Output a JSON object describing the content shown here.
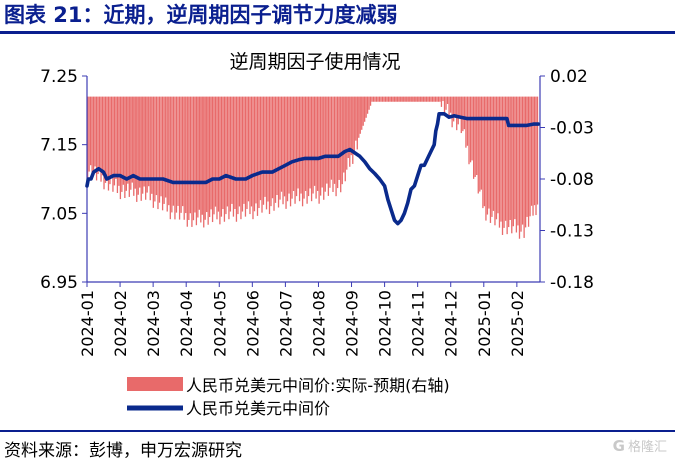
{
  "figure": {
    "title": "图表 21：近期，逆周期因子调节力度减弱",
    "source": "资料来源：彭博，申万宏源研究",
    "watermark": "格隆汇"
  },
  "chart_data": {
    "type": "bar+line",
    "title": "逆周期因子使用情况",
    "x_tick_labels": [
      "2024-01",
      "2024-02",
      "2024-03",
      "2024-04",
      "2024-05",
      "2024-06",
      "2024-07",
      "2024-08",
      "2024-09",
      "2024-10",
      "2024-11",
      "2024-12",
      "2025-01",
      "2025-02"
    ],
    "left_axis": {
      "ylim": [
        6.95,
        7.25
      ],
      "ticks": [
        "6.95",
        "7.05",
        "7.15",
        "7.25"
      ]
    },
    "right_axis": {
      "ylim": [
        -0.18,
        0.02
      ],
      "ticks": [
        "-0.18",
        "-0.13",
        "-0.08",
        "-0.03",
        "0.02"
      ]
    },
    "legend": [
      "人民币兑美元中间价:实际-预期(右轴)",
      "人民币兑美元中间价"
    ],
    "colors": {
      "bar": "#e86a6a",
      "line": "#0a2a8c",
      "axis": "#3c3cb4",
      "title": "#0a1f8f"
    },
    "series": [
      {
        "name": "人民币兑美元中间价",
        "axis": "left",
        "type": "line",
        "points": [
          [
            0,
            7.09
          ],
          [
            0.04,
            7.1
          ],
          [
            0.12,
            7.1
          ],
          [
            0.2,
            7.11
          ],
          [
            0.35,
            7.115
          ],
          [
            0.5,
            7.11
          ],
          [
            0.6,
            7.1
          ],
          [
            0.8,
            7.105
          ],
          [
            1.0,
            7.105
          ],
          [
            1.2,
            7.1
          ],
          [
            1.4,
            7.105
          ],
          [
            1.6,
            7.1
          ],
          [
            1.8,
            7.1
          ],
          [
            2.0,
            7.1
          ],
          [
            2.3,
            7.1
          ],
          [
            2.6,
            7.095
          ],
          [
            3.0,
            7.095
          ],
          [
            3.3,
            7.095
          ],
          [
            3.6,
            7.095
          ],
          [
            3.8,
            7.1
          ],
          [
            4.0,
            7.1
          ],
          [
            4.2,
            7.105
          ],
          [
            4.5,
            7.1
          ],
          [
            4.8,
            7.1
          ],
          [
            5.0,
            7.105
          ],
          [
            5.3,
            7.11
          ],
          [
            5.6,
            7.11
          ],
          [
            5.8,
            7.115
          ],
          [
            6.0,
            7.12
          ],
          [
            6.2,
            7.125
          ],
          [
            6.4,
            7.128
          ],
          [
            6.6,
            7.13
          ],
          [
            6.8,
            7.13
          ],
          [
            7.0,
            7.13
          ],
          [
            7.2,
            7.133
          ],
          [
            7.4,
            7.133
          ],
          [
            7.6,
            7.133
          ],
          [
            7.8,
            7.14
          ],
          [
            7.95,
            7.143
          ],
          [
            8.1,
            7.138
          ],
          [
            8.25,
            7.133
          ],
          [
            8.4,
            7.125
          ],
          [
            8.55,
            7.115
          ],
          [
            8.7,
            7.108
          ],
          [
            8.85,
            7.1
          ],
          [
            9.0,
            7.09
          ],
          [
            9.1,
            7.07
          ],
          [
            9.2,
            7.055
          ],
          [
            9.3,
            7.04
          ],
          [
            9.4,
            7.035
          ],
          [
            9.5,
            7.04
          ],
          [
            9.6,
            7.05
          ],
          [
            9.7,
            7.065
          ],
          [
            9.8,
            7.085
          ],
          [
            9.9,
            7.09
          ],
          [
            10.0,
            7.105
          ],
          [
            10.1,
            7.12
          ],
          [
            10.2,
            7.12
          ],
          [
            10.3,
            7.13
          ],
          [
            10.4,
            7.14
          ],
          [
            10.5,
            7.15
          ],
          [
            10.55,
            7.17
          ],
          [
            10.6,
            7.18
          ],
          [
            10.65,
            7.195
          ],
          [
            10.8,
            7.195
          ],
          [
            10.95,
            7.19
          ],
          [
            11.1,
            7.192
          ],
          [
            11.3,
            7.19
          ],
          [
            11.5,
            7.188
          ],
          [
            11.7,
            7.188
          ],
          [
            11.9,
            7.188
          ],
          [
            12.1,
            7.188
          ],
          [
            12.3,
            7.188
          ],
          [
            12.5,
            7.188
          ],
          [
            12.7,
            7.188
          ],
          [
            12.75,
            7.178
          ],
          [
            12.9,
            7.178
          ],
          [
            13.1,
            7.178
          ],
          [
            13.3,
            7.178
          ],
          [
            13.5,
            7.18
          ],
          [
            13.65,
            7.18
          ]
        ]
      },
      {
        "name": "人民币兑美元中间价:实际-预期(右轴)",
        "axis": "right",
        "type": "bar",
        "segments": [
          {
            "x0": 0.0,
            "x1": 0.9,
            "v0": -0.07,
            "v1": -0.09
          },
          {
            "x0": 0.9,
            "x1": 1.8,
            "v0": -0.09,
            "v1": -0.095
          },
          {
            "x0": 1.8,
            "x1": 2.5,
            "v0": -0.095,
            "v1": -0.11
          },
          {
            "x0": 2.5,
            "x1": 3.2,
            "v0": -0.11,
            "v1": -0.12
          },
          {
            "x0": 3.2,
            "x1": 4.0,
            "v0": -0.12,
            "v1": -0.115
          },
          {
            "x0": 4.0,
            "x1": 5.0,
            "v0": -0.115,
            "v1": -0.11
          },
          {
            "x0": 5.0,
            "x1": 6.0,
            "v0": -0.11,
            "v1": -0.1
          },
          {
            "x0": 6.0,
            "x1": 7.0,
            "v0": -0.1,
            "v1": -0.095
          },
          {
            "x0": 7.0,
            "x1": 7.7,
            "v0": -0.095,
            "v1": -0.085
          },
          {
            "x0": 7.7,
            "x1": 8.2,
            "v0": -0.085,
            "v1": -0.04
          },
          {
            "x0": 8.2,
            "x1": 8.6,
            "v0": -0.04,
            "v1": -0.005
          },
          {
            "x0": 8.6,
            "x1": 10.7,
            "v0": -0.005,
            "v1": -0.005
          },
          {
            "x0": 10.7,
            "x1": 11.3,
            "v0": -0.01,
            "v1": -0.03
          },
          {
            "x0": 11.3,
            "x1": 12.0,
            "v0": -0.03,
            "v1": -0.11
          },
          {
            "x0": 12.0,
            "x1": 12.5,
            "v0": -0.11,
            "v1": -0.125
          },
          {
            "x0": 12.5,
            "x1": 13.2,
            "v0": -0.125,
            "v1": -0.13
          },
          {
            "x0": 13.2,
            "x1": 13.65,
            "v0": -0.13,
            "v1": -0.1
          }
        ]
      }
    ]
  }
}
